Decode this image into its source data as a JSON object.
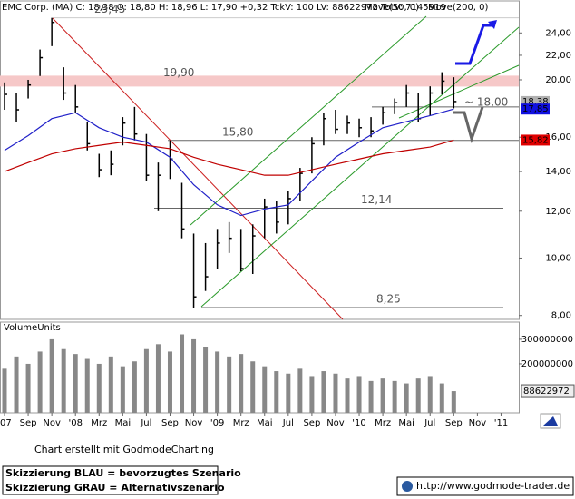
{
  "chart_data": [
    {
      "type": "ohlc",
      "title": "EMC Corp. (MA) C: 18,38 O: 18,80 H: 18,96 L: 17,90 +0,32 TckV: 100 LV: 88622972 TotV: 7145919",
      "x": [
        0,
        1,
        2,
        3,
        4,
        5,
        6,
        7,
        8,
        9,
        10,
        11,
        12,
        13,
        14,
        15,
        16,
        17,
        18,
        19,
        20,
        21,
        22,
        23,
        24,
        25,
        26,
        27,
        28,
        29,
        30,
        31,
        32,
        33,
        34,
        35,
        36,
        37,
        38
      ],
      "high": [
        19.8,
        19.0,
        20.0,
        22.5,
        25.45,
        21.0,
        19.6,
        17.0,
        15.0,
        15.2,
        17.3,
        18.0,
        16.2,
        14.5,
        15.8,
        13.4,
        11.0,
        10.6,
        11.2,
        11.5,
        11.2,
        11.4,
        12.6,
        12.5,
        13.0,
        14.2,
        16.0,
        17.6,
        17.8,
        17.4,
        17.2,
        17.3,
        18.0,
        18.6,
        19.6,
        19.0,
        19.5,
        20.6,
        20.2
      ],
      "low": [
        17.8,
        17.0,
        18.6,
        20.3,
        22.8,
        18.5,
        17.6,
        15.2,
        13.7,
        13.8,
        15.5,
        15.8,
        13.5,
        12.0,
        13.6,
        10.8,
        8.25,
        8.8,
        9.6,
        10.2,
        9.5,
        9.4,
        10.8,
        11.0,
        11.4,
        12.5,
        13.9,
        15.5,
        16.2,
        16.2,
        16.0,
        16.0,
        16.8,
        17.5,
        18.0,
        17.0,
        17.4,
        18.9,
        17.9
      ],
      "close": [
        18.9,
        17.8,
        19.6,
        21.8,
        25.0,
        19.0,
        18.0,
        15.6,
        14.1,
        14.4,
        16.9,
        16.2,
        13.8,
        13.8,
        14.7,
        11.2,
        8.6,
        9.3,
        10.6,
        10.8,
        9.6,
        10.9,
        12.2,
        11.5,
        12.6,
        13.9,
        15.6,
        17.2,
        16.5,
        16.9,
        16.6,
        16.4,
        17.6,
        18.3,
        19.0,
        17.2,
        19.0,
        19.9,
        18.38
      ],
      "color": "#000000",
      "series": [
        {
          "name": "Move(50, 0)",
          "color": "#2020c8",
          "x": [
            0,
            2,
            4,
            6,
            8,
            10,
            12,
            14,
            16,
            18,
            20,
            22,
            24,
            26,
            28,
            30,
            32,
            34,
            36,
            38
          ],
          "values": [
            15.2,
            16.1,
            17.2,
            17.6,
            16.6,
            16.0,
            15.7,
            14.8,
            13.3,
            12.3,
            11.8,
            12.1,
            12.3,
            13.5,
            14.8,
            15.7,
            16.6,
            17.0,
            17.4,
            17.85
          ]
        },
        {
          "name": "Move(200, 0)",
          "color": "#c00000",
          "x": [
            0,
            2,
            4,
            6,
            8,
            10,
            12,
            14,
            16,
            18,
            20,
            22,
            24,
            26,
            28,
            30,
            32,
            34,
            36,
            38
          ],
          "values": [
            14.0,
            14.5,
            15.0,
            15.3,
            15.5,
            15.7,
            15.5,
            15.3,
            14.8,
            14.4,
            14.1,
            13.8,
            13.8,
            14.1,
            14.4,
            14.7,
            15.0,
            15.2,
            15.4,
            15.82
          ]
        }
      ],
      "legend_color": "#e0b000",
      "levels": [
        {
          "value": 25.45,
          "label": "25,45"
        },
        {
          "value": 19.9,
          "label": "19,90"
        },
        {
          "value": 15.8,
          "label": "15,80"
        },
        {
          "value": 12.14,
          "label": "12,14"
        },
        {
          "value": 8.25,
          "label": "8,25"
        },
        {
          "value": 18.0,
          "label": "~ 18,00"
        }
      ],
      "price_tags": [
        {
          "value": 18.38,
          "label": "18,38",
          "color": "#b0b0b0"
        },
        {
          "value": 17.85,
          "label": "17,85",
          "color": "#1010e0"
        },
        {
          "value": 15.82,
          "label": "15,82",
          "color": "#e00000"
        }
      ],
      "log_scale": true,
      "xlim": [
        0,
        43.5
      ],
      "ylim": [
        7.88,
        25.6
      ],
      "yticks": [
        {
          "value": 8,
          "label": "8,00"
        },
        {
          "value": 10,
          "label": "10,00"
        },
        {
          "value": 12,
          "label": "12,00"
        },
        {
          "value": 14,
          "label": "14,00"
        },
        {
          "value": 16,
          "label": "16,00"
        },
        {
          "value": 20,
          "label": "20,00"
        },
        {
          "value": 22,
          "label": "22,00"
        },
        {
          "value": 24,
          "label": "24,00"
        }
      ]
    },
    {
      "type": "bar",
      "title": "VolumeUnits",
      "x": [
        0,
        1,
        2,
        3,
        4,
        5,
        6,
        7,
        8,
        9,
        10,
        11,
        12,
        13,
        14,
        15,
        16,
        17,
        18,
        19,
        20,
        21,
        22,
        23,
        24,
        25,
        26,
        27,
        28,
        29,
        30,
        31,
        32,
        33,
        34,
        35,
        36,
        37,
        38
      ],
      "values": [
        180000000,
        230000000,
        200000000,
        250000000,
        300000000,
        260000000,
        240000000,
        220000000,
        200000000,
        230000000,
        190000000,
        210000000,
        260000000,
        280000000,
        250000000,
        320000000,
        300000000,
        270000000,
        250000000,
        230000000,
        240000000,
        210000000,
        190000000,
        170000000,
        160000000,
        180000000,
        150000000,
        170000000,
        160000000,
        140000000,
        150000000,
        130000000,
        140000000,
        130000000,
        120000000,
        140000000,
        150000000,
        120000000,
        88622972
      ],
      "color": "#888888",
      "xlim": [
        0,
        43.5
      ],
      "ylim": [
        0,
        370000000
      ],
      "yticks": [
        200000000,
        300000000
      ],
      "last_value": 88622972,
      "xticks": [
        {
          "value": 0,
          "label": "'07"
        },
        {
          "value": 2,
          "label": "Sep"
        },
        {
          "value": 4,
          "label": "Nov"
        },
        {
          "value": 6,
          "label": "'08"
        },
        {
          "value": 8,
          "label": "Mrz"
        },
        {
          "value": 10,
          "label": "Mai"
        },
        {
          "value": 12,
          "label": "Jul"
        },
        {
          "value": 14,
          "label": "Sep"
        },
        {
          "value": 16,
          "label": "Nov"
        },
        {
          "value": 18,
          "label": "'09"
        },
        {
          "value": 20,
          "label": "Mrz"
        },
        {
          "value": 22,
          "label": "Mai"
        },
        {
          "value": 24,
          "label": "Jul"
        },
        {
          "value": 26,
          "label": "Sep"
        },
        {
          "value": 28,
          "label": "Nov"
        },
        {
          "value": 30,
          "label": "'10"
        },
        {
          "value": 32,
          "label": "Mrz"
        },
        {
          "value": 34,
          "label": "Mai"
        },
        {
          "value": 36,
          "label": "Jul"
        },
        {
          "value": 38,
          "label": "Sep"
        },
        {
          "value": 40,
          "label": "Nov"
        },
        {
          "value": 42,
          "label": "'11"
        }
      ]
    }
  ],
  "footer": {
    "credit": "Chart erstellt mit GodmodeCharting",
    "note_blue": "Skizzierung BLAU = bevorzugtes Szenario",
    "note_gray": "Skizzierung GRAU = Alternativszenario",
    "url": "http://www.godmode-trader.de"
  }
}
